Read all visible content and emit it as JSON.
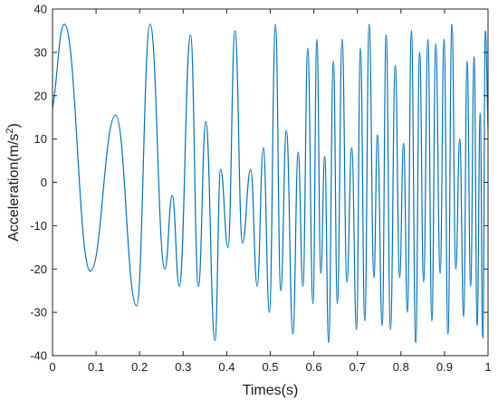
{
  "chart_data": {
    "type": "line",
    "title": "",
    "xlabel": "Times(s)",
    "ylabel_base": "Acceleration(m/s",
    "ylabel_sup": "2",
    "ylabel_close": ")",
    "xlim": [
      0,
      1
    ],
    "ylim": [
      -40,
      40
    ],
    "x_ticks": [
      0,
      0.1,
      0.2,
      0.3,
      0.4,
      0.5,
      0.6,
      0.7,
      0.8,
      0.9,
      1
    ],
    "x_tick_labels": [
      "0",
      "0.1",
      "0.2",
      "0.3",
      "0.4",
      "0.5",
      "0.6",
      "0.7",
      "0.8",
      "0.9",
      "1"
    ],
    "y_ticks": [
      -40,
      -30,
      -20,
      -10,
      0,
      10,
      20,
      30,
      40
    ],
    "y_tick_labels": [
      "-40",
      "-30",
      "-20",
      "-10",
      "0",
      "10",
      "20",
      "30",
      "40"
    ],
    "grid": false,
    "series": [
      {
        "color": "#0072bd",
        "x": [
          0,
          0.027,
          0.087,
          0.145,
          0.193,
          0.224,
          0.258,
          0.275,
          0.291,
          0.317,
          0.335,
          0.352,
          0.373,
          0.386,
          0.403,
          0.419,
          0.436,
          0.455,
          0.47,
          0.484,
          0.498,
          0.512,
          0.524,
          0.537,
          0.552,
          0.564,
          0.575,
          0.586,
          0.598,
          0.607,
          0.616,
          0.625,
          0.634,
          0.645,
          0.654,
          0.665,
          0.676,
          0.687,
          0.698,
          0.707,
          0.717,
          0.727,
          0.738,
          0.746,
          0.757,
          0.766,
          0.776,
          0.787,
          0.797,
          0.806,
          0.815,
          0.824,
          0.834,
          0.843,
          0.852,
          0.862,
          0.871,
          0.88,
          0.89,
          0.899,
          0.908,
          0.917,
          0.926,
          0.935,
          0.944,
          0.952,
          0.96,
          0.968,
          0.975,
          0.982,
          0.988,
          0.994,
          1
        ],
        "y": [
          17,
          36.5,
          -20.5,
          15.5,
          -28.5,
          36.5,
          -20,
          -3,
          -24,
          34,
          -24,
          14,
          -36.5,
          3,
          -15,
          35,
          -14,
          3,
          -24,
          8,
          -30,
          36.5,
          -25,
          12,
          -35,
          7,
          -24,
          31,
          -28,
          33,
          -21,
          6,
          -37,
          28,
          -28,
          33,
          -23,
          8,
          -34,
          31,
          -32,
          36.5,
          -22,
          11,
          -33,
          34,
          -34,
          27,
          -22,
          9,
          -30,
          35,
          -37,
          30,
          -23,
          33,
          -32,
          32,
          -21,
          33,
          -35,
          36.5,
          -20,
          10,
          -31,
          28,
          -24,
          29,
          -33,
          16,
          -36,
          35,
          12
        ]
      }
    ]
  }
}
